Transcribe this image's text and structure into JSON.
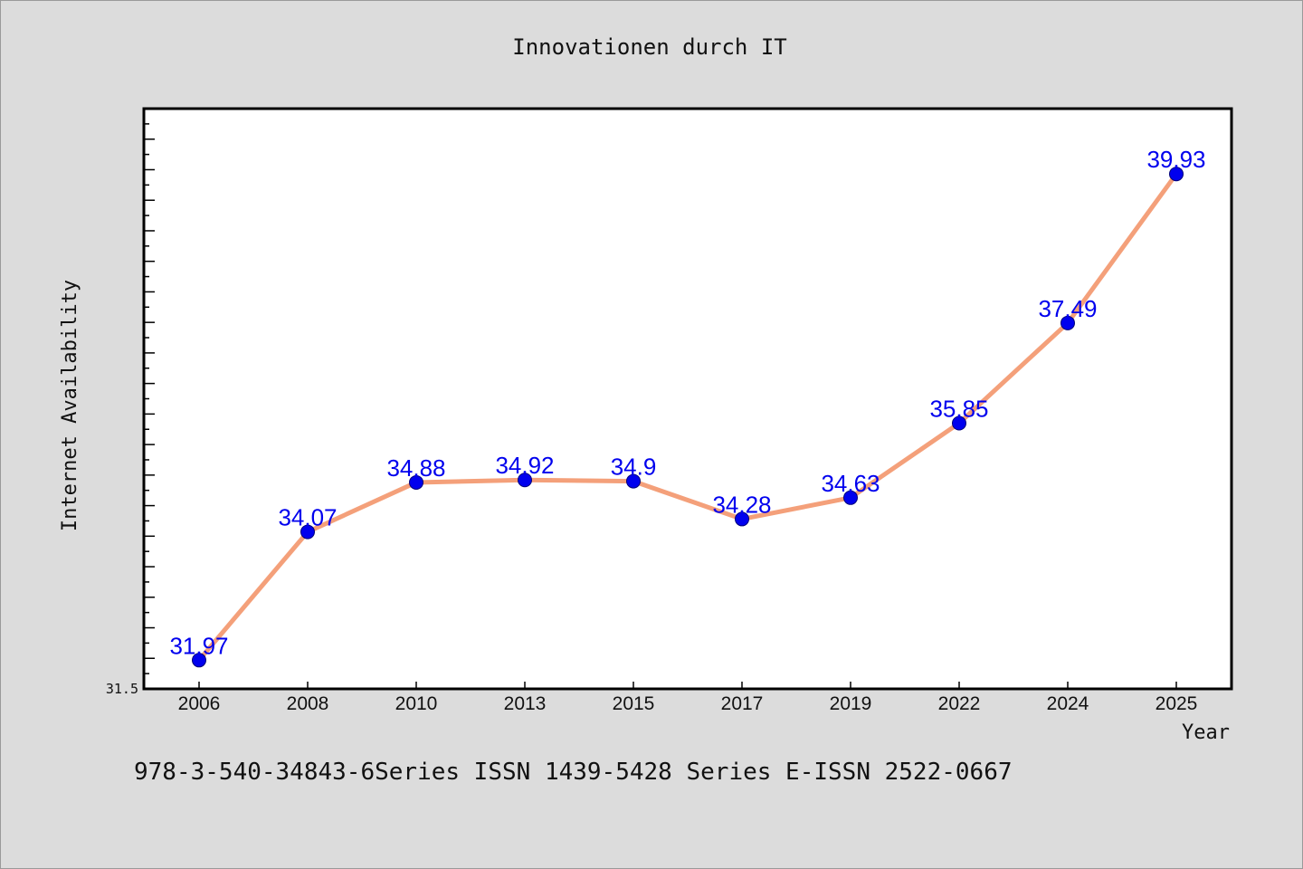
{
  "chart_data": {
    "type": "line",
    "title": "Innovationen durch IT",
    "xlabel": "Year",
    "ylabel": "Internet Availability",
    "categories": [
      "2006",
      "2008",
      "2010",
      "2013",
      "2015",
      "2017",
      "2019",
      "2022",
      "2024",
      "2025"
    ],
    "values": [
      31.97,
      34.07,
      34.88,
      34.92,
      34.9,
      34.28,
      34.63,
      35.85,
      37.49,
      39.93
    ],
    "data_labels": [
      "31.97",
      "34.07",
      "34.88",
      "34.92",
      "34.9",
      "34.28",
      "34.63",
      "35.85",
      "37.49",
      "39.93"
    ],
    "y_tick_labels": [
      "31.5"
    ],
    "ylim": [
      31.5,
      41.0
    ],
    "grid": false,
    "legend": "none",
    "line_color": "#f4a07a",
    "marker_color": "#0000ee",
    "label_color": "#0000ee",
    "background_color": "#dcdcdc",
    "plot_background_color": "#ffffff"
  },
  "footer_text": "978-3-540-34843-6Series ISSN 1439-5428 Series E-ISSN 2522-0667"
}
